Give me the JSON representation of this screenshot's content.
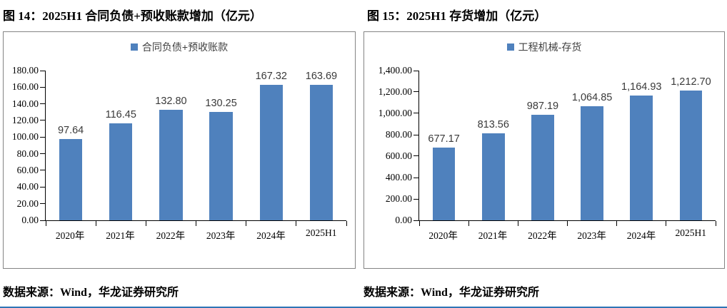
{
  "page": {
    "source_note_left": "数据来源：Wind，华龙证券研究所",
    "source_note_right": "数据来源：Wind，华龙证券研究所",
    "accent_line_color": "#2e75b6"
  },
  "chart_data": [
    {
      "type": "bar",
      "title": "图 14：2025H1 合同负债+预收账款增加（亿元）",
      "legend": [
        "合同负债+预收账款"
      ],
      "legend_position": "top",
      "categories": [
        "2020年",
        "2021年",
        "2022年",
        "2023年",
        "2024年",
        "2025H1"
      ],
      "values": [
        97.64,
        116.45,
        132.8,
        130.25,
        167.32,
        163.69
      ],
      "value_labels": [
        "97.64",
        "116.45",
        "132.80",
        "130.25",
        "167.32",
        "163.69"
      ],
      "ylim": [
        0,
        180
      ],
      "ytick_step": 20,
      "ytick_labels": [
        "180.00",
        "160.00",
        "140.00",
        "120.00",
        "100.00",
        "80.00",
        "60.00",
        "40.00",
        "20.00",
        "0.00"
      ],
      "grid": false,
      "bar_color": "#4F81BD"
    },
    {
      "type": "bar",
      "title": "图 15：2025H1 存货增加（亿元）",
      "legend": [
        "工程机械-存货"
      ],
      "legend_position": "top",
      "categories": [
        "2020年",
        "2021年",
        "2022年",
        "2023年",
        "2024年",
        "2025H1"
      ],
      "values": [
        677.17,
        813.56,
        987.19,
        1064.85,
        1164.93,
        1212.7
      ],
      "value_labels": [
        "677.17",
        "813.56",
        "987.19",
        "1,064.85",
        "1,164.93",
        "1,212.70"
      ],
      "ylim": [
        0,
        1400
      ],
      "ytick_step": 200,
      "ytick_labels": [
        "1,400.00",
        "1,200.00",
        "1,000.00",
        "800.00",
        "600.00",
        "400.00",
        "200.00",
        "0.00"
      ],
      "grid": false,
      "bar_color": "#4F81BD"
    }
  ]
}
